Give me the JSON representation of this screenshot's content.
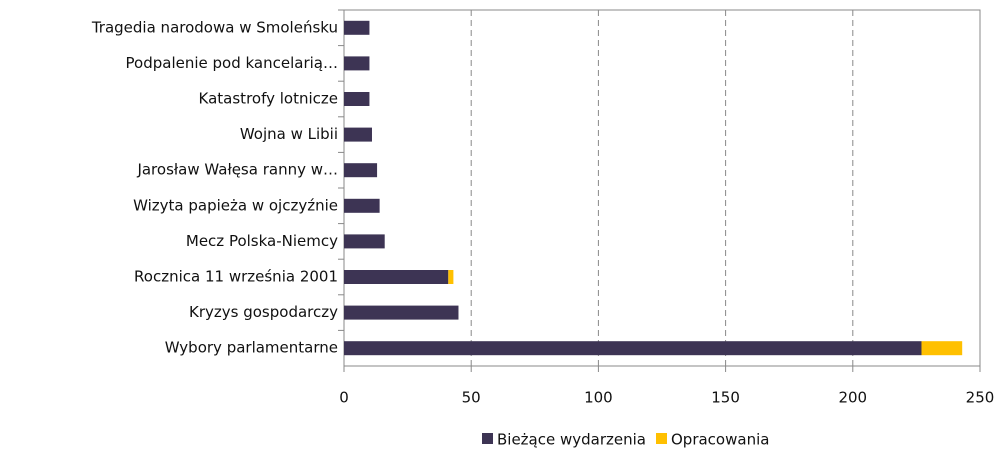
{
  "chart_data": {
    "type": "stacked-barh",
    "categories": [
      "Tragedia narodowa w Smoleńsku",
      "Podpalenie pod kancelarią…",
      "Katastrofy lotnicze",
      "Wojna w Libii",
      "Jarosław Wałęsa ranny w…",
      "Wizyta papieża w ojczyźnie",
      "Mecz Polska-Niemcy",
      "Rocznica 11 września 2001",
      "Kryzys gospodarczy",
      "Wybory parlamentarne"
    ],
    "series": [
      {
        "name": "Bieżące wydarzenia",
        "color": "#3d3454",
        "values": [
          10,
          10,
          10,
          11,
          13,
          14,
          16,
          41,
          45,
          227
        ]
      },
      {
        "name": "Opracowania",
        "color": "#ffc000",
        "values": [
          0,
          0,
          0,
          0,
          0,
          0,
          0,
          2,
          0,
          16
        ]
      }
    ],
    "xlim": [
      0,
      250
    ],
    "xticks": [
      0,
      50,
      100,
      150,
      200,
      250
    ],
    "grid": true,
    "legend": "bottom"
  }
}
